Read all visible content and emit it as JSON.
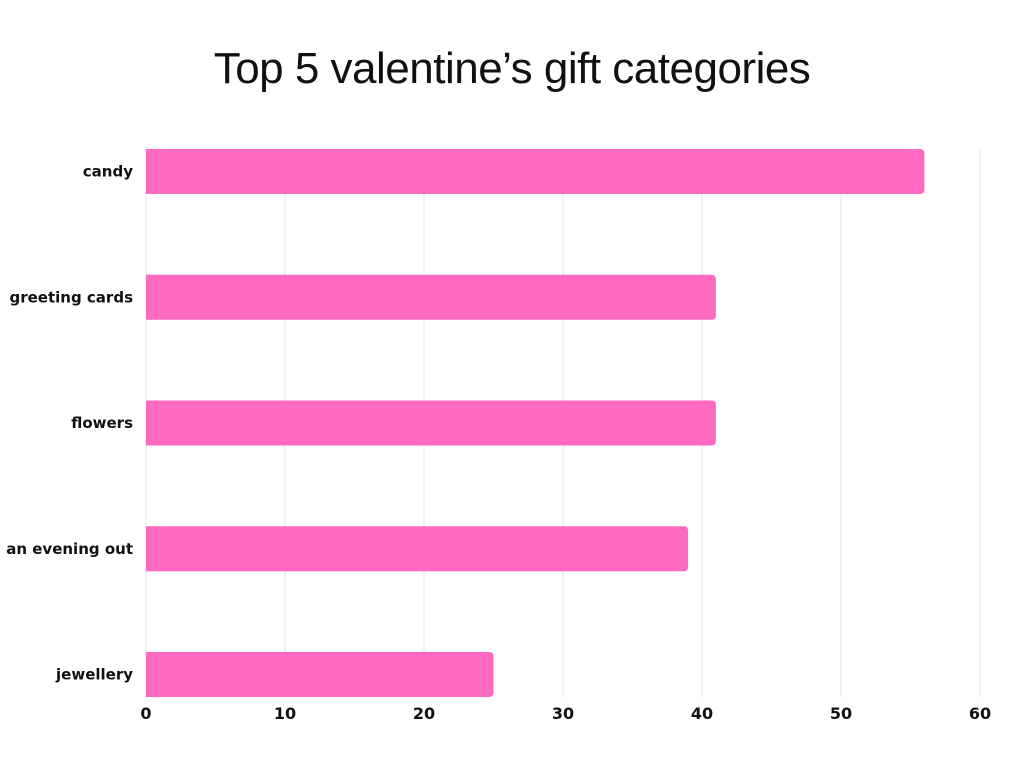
{
  "chart_data": {
    "type": "bar",
    "orientation": "horizontal",
    "title": "Top 5 valentine’s gift categories",
    "categories": [
      "candy",
      "greeting cards",
      "flowers",
      "an evening out",
      "jewellery"
    ],
    "values": [
      56,
      41,
      41,
      39,
      25
    ],
    "xlim": [
      0,
      60
    ],
    "xticks": [
      "0",
      "10",
      "20",
      "30",
      "40",
      "50",
      "60"
    ],
    "grid": "vertical",
    "bar_color": "#FF69C1",
    "grid_color": "#E4E4E4"
  }
}
